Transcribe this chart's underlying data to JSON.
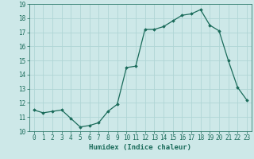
{
  "x": [
    0,
    1,
    2,
    3,
    4,
    5,
    6,
    7,
    8,
    9,
    10,
    11,
    12,
    13,
    14,
    15,
    16,
    17,
    18,
    19,
    20,
    21,
    22,
    23
  ],
  "y": [
    11.5,
    11.3,
    11.4,
    11.5,
    10.9,
    10.3,
    10.4,
    10.6,
    11.4,
    11.9,
    14.5,
    14.6,
    17.2,
    17.2,
    17.4,
    17.8,
    18.2,
    18.3,
    18.6,
    17.5,
    17.1,
    15.0,
    13.1,
    12.2
  ],
  "xlabel": "Humidex (Indice chaleur)",
  "xlim": [
    -0.5,
    23.5
  ],
  "ylim": [
    10,
    19
  ],
  "yticks": [
    10,
    11,
    12,
    13,
    14,
    15,
    16,
    17,
    18,
    19
  ],
  "xticks": [
    0,
    1,
    2,
    3,
    4,
    5,
    6,
    7,
    8,
    9,
    10,
    11,
    12,
    13,
    14,
    15,
    16,
    17,
    18,
    19,
    20,
    21,
    22,
    23
  ],
  "line_color": "#1a6b5a",
  "marker": "D",
  "marker_size": 1.8,
  "bg_color": "#cde8e8",
  "grid_color": "#b0d5d5",
  "label_fontsize": 6.5,
  "tick_fontsize": 5.5
}
